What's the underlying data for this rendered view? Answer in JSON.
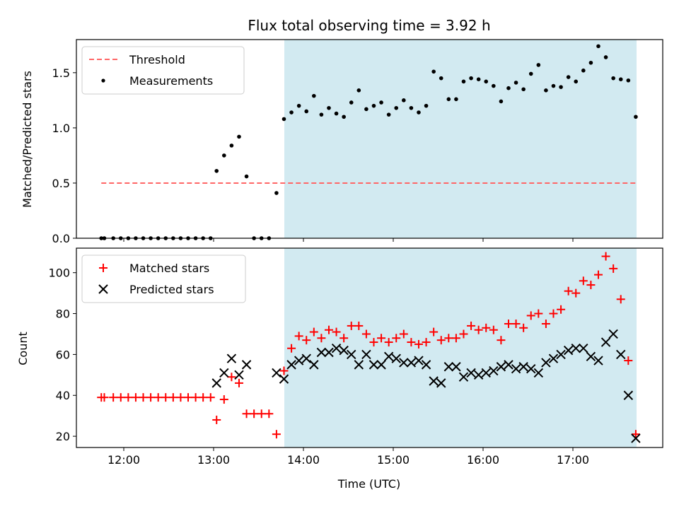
{
  "chart_data": {
    "type": "scatter",
    "title": "Flux total observing time = 3.92 h",
    "xlabel": "Time (UTC)",
    "x_tick_labels": [
      "12:00",
      "13:00",
      "14:00",
      "15:00",
      "16:00",
      "17:00"
    ],
    "shaded_interval": [
      "13:47",
      "17:42"
    ],
    "colors": {
      "shade": "#add8e6",
      "threshold": "#ff6666",
      "measurements": "#000000",
      "matched": "#ff0000",
      "predicted": "#000000"
    },
    "panels": [
      {
        "name": "ratio",
        "ylabel": "Matched/Predicted stars",
        "ylim": [
          0.0,
          1.8
        ],
        "y_ticks": [
          "0.0",
          "0.5",
          "1.0",
          "1.5"
        ],
        "legend_position": "upper-left",
        "lines": [
          {
            "name": "Threshold",
            "style": "dashed",
            "x": [
              "11:45",
              "17:42"
            ],
            "y": [
              0.5,
              0.5
            ]
          }
        ],
        "series": [
          {
            "name": "Measurements",
            "marker": "dot",
            "x": [
              "11:45",
              "11:47",
              "11:53",
              "11:58",
              "12:03",
              "12:08",
              "12:13",
              "12:18",
              "12:23",
              "12:28",
              "12:33",
              "12:38",
              "12:43",
              "12:48",
              "12:53",
              "12:58",
              "13:02",
              "13:07",
              "13:12",
              "13:17",
              "13:22",
              "13:27",
              "13:32",
              "13:37",
              "13:42",
              "13:47",
              "13:52",
              "13:57",
              "14:02",
              "14:07",
              "14:12",
              "14:17",
              "14:22",
              "14:27",
              "14:32",
              "14:37",
              "14:42",
              "14:47",
              "14:52",
              "14:57",
              "15:02",
              "15:07",
              "15:12",
              "15:17",
              "15:22",
              "15:27",
              "15:32",
              "15:37",
              "15:42",
              "15:47",
              "15:52",
              "15:57",
              "16:02",
              "16:07",
              "16:12",
              "16:17",
              "16:22",
              "16:27",
              "16:32",
              "16:37",
              "16:42",
              "16:47",
              "16:52",
              "16:57",
              "17:02",
              "17:07",
              "17:12",
              "17:17",
              "17:22",
              "17:27",
              "17:32",
              "17:37",
              "17:42"
            ],
            "y": [
              0,
              0,
              0,
              0,
              0,
              0,
              0,
              0,
              0,
              0,
              0,
              0,
              0,
              0,
              0,
              0,
              0.61,
              0.75,
              0.84,
              0.92,
              0.56,
              0,
              0,
              0,
              0.41,
              1.08,
              1.14,
              1.2,
              1.15,
              1.29,
              1.12,
              1.18,
              1.13,
              1.1,
              1.23,
              1.34,
              1.17,
              1.2,
              1.23,
              1.12,
              1.18,
              1.25,
              1.18,
              1.14,
              1.2,
              1.51,
              1.45,
              1.26,
              1.26,
              1.42,
              1.45,
              1.44,
              1.42,
              1.38,
              1.24,
              1.36,
              1.41,
              1.35,
              1.49,
              1.57,
              1.34,
              1.38,
              1.37,
              1.46,
              1.42,
              1.52,
              1.59,
              1.74,
              1.64,
              1.45,
              1.44,
              1.43,
              1.1
            ]
          }
        ]
      },
      {
        "name": "counts",
        "ylabel": "Count",
        "ylim": [
          14.5,
          112
        ],
        "y_ticks": [
          "20",
          "40",
          "60",
          "80",
          "100"
        ],
        "legend_position": "upper-left",
        "series": [
          {
            "name": "Matched stars",
            "marker": "plus",
            "x": [
              "11:45",
              "11:47",
              "11:53",
              "11:58",
              "12:03",
              "12:08",
              "12:13",
              "12:18",
              "12:23",
              "12:28",
              "12:33",
              "12:38",
              "12:43",
              "12:48",
              "12:53",
              "12:58",
              "13:02",
              "13:07",
              "13:12",
              "13:17",
              "13:22",
              "13:27",
              "13:32",
              "13:37",
              "13:42",
              "13:47",
              "13:52",
              "13:57",
              "14:02",
              "14:07",
              "14:12",
              "14:17",
              "14:22",
              "14:27",
              "14:32",
              "14:37",
              "14:42",
              "14:47",
              "14:52",
              "14:57",
              "15:02",
              "15:07",
              "15:12",
              "15:17",
              "15:22",
              "15:27",
              "15:32",
              "15:37",
              "15:42",
              "15:47",
              "15:52",
              "15:57",
              "16:02",
              "16:07",
              "16:12",
              "16:17",
              "16:22",
              "16:27",
              "16:32",
              "16:37",
              "16:42",
              "16:47",
              "16:52",
              "16:57",
              "17:02",
              "17:07",
              "17:12",
              "17:17",
              "17:22",
              "17:27",
              "17:32",
              "17:37",
              "17:42"
            ],
            "y": [
              39,
              39,
              39,
              39,
              39,
              39,
              39,
              39,
              39,
              39,
              39,
              39,
              39,
              39,
              39,
              39,
              28,
              38,
              49,
              46,
              31,
              31,
              31,
              31,
              21,
              52,
              63,
              69,
              67,
              71,
              68,
              72,
              71,
              68,
              74,
              74,
              70,
              66,
              68,
              66,
              68,
              70,
              66,
              65,
              66,
              71,
              67,
              68,
              68,
              70,
              74,
              72,
              73,
              72,
              67,
              75,
              75,
              73,
              79,
              80,
              75,
              80,
              82,
              91,
              90,
              96,
              94,
              99,
              108,
              102,
              87,
              57,
              21
            ]
          },
          {
            "name": "Predicted stars",
            "marker": "x",
            "x": [
              "13:02",
              "13:07",
              "13:12",
              "13:17",
              "13:22",
              "13:42",
              "13:47",
              "13:52",
              "13:57",
              "14:02",
              "14:07",
              "14:12",
              "14:17",
              "14:22",
              "14:27",
              "14:32",
              "14:37",
              "14:42",
              "14:47",
              "14:52",
              "14:57",
              "15:02",
              "15:07",
              "15:12",
              "15:17",
              "15:22",
              "15:27",
              "15:32",
              "15:37",
              "15:42",
              "15:47",
              "15:52",
              "15:57",
              "16:02",
              "16:07",
              "16:12",
              "16:17",
              "16:22",
              "16:27",
              "16:32",
              "16:37",
              "16:42",
              "16:47",
              "16:52",
              "16:57",
              "17:02",
              "17:07",
              "17:12",
              "17:17",
              "17:22",
              "17:27",
              "17:32",
              "17:37",
              "17:42"
            ],
            "y": [
              46,
              51,
              58,
              50,
              55,
              51,
              48,
              55,
              57,
              58,
              55,
              61,
              61,
              63,
              62,
              60,
              55,
              60,
              55,
              55,
              59,
              58,
              56,
              56,
              57,
              55,
              47,
              46,
              54,
              54,
              49,
              51,
              50,
              51,
              52,
              54,
              55,
              53,
              54,
              53,
              51,
              56,
              58,
              60,
              62,
              63,
              63,
              59,
              57,
              66,
              70,
              60,
              40,
              19
            ]
          }
        ]
      }
    ]
  }
}
